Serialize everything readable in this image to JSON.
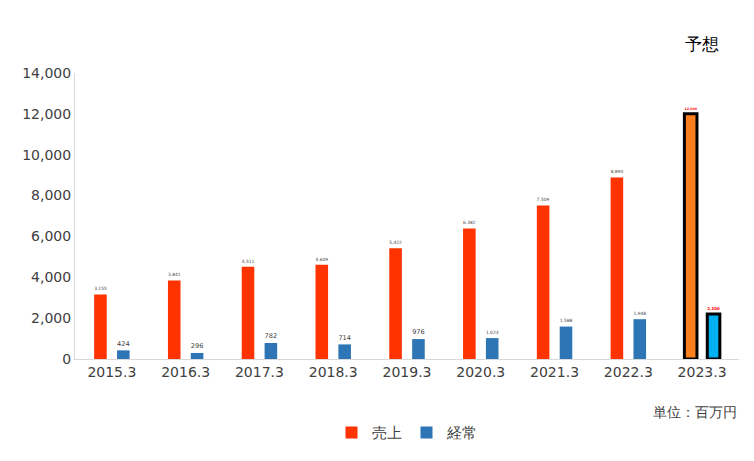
{
  "chart_data": {
    "type": "bar",
    "categories": [
      "2015.3",
      "2016.3",
      "2017.3",
      "2018.3",
      "2019.3",
      "2020.3",
      "2021.3",
      "2022.3",
      "2023.3"
    ],
    "series": [
      {
        "name": "売上",
        "colors": [
          "#ff3300",
          "#ff3300",
          "#ff3300",
          "#ff3300",
          "#ff3300",
          "#ff3300",
          "#ff3300",
          "#ff3300",
          "#ff7f1e"
        ],
        "values": [
          3155,
          3841,
          4511,
          4609,
          5422,
          6382,
          7509,
          8890,
          12000
        ],
        "value_labels": [
          "3,155",
          "3,841",
          "4,511",
          "4,609",
          "5,422",
          "6,382",
          "7,509",
          "8,890",
          "12,000"
        ]
      },
      {
        "name": "経常",
        "colors": [
          "#2e75b6",
          "#2e75b6",
          "#2e75b6",
          "#2e75b6",
          "#2e75b6",
          "#2e75b6",
          "#2e75b6",
          "#2e75b6",
          "#00b0f0"
        ],
        "values": [
          424,
          296,
          782,
          714,
          976,
          1023,
          1588,
          1948,
          2200
        ],
        "value_labels": [
          "424",
          "296",
          "782",
          "714",
          "976",
          "1,023",
          "1,588",
          "1,948",
          "2,200"
        ]
      }
    ],
    "ylim": [
      0,
      14000
    ],
    "yticks": [
      0,
      {
        "value": 2000,
        "label": "2,000"
      },
      {
        "value": 4000,
        "label": "4,000"
      },
      {
        "value": 6000,
        "label": "6,000"
      },
      {
        "value": 8000,
        "label": "8,000"
      },
      {
        "value": 10000,
        "label": "10,000"
      },
      {
        "value": 12000,
        "label": "12,000"
      },
      {
        "value": 14000,
        "label": "14,000"
      }
    ],
    "grid": false,
    "legend": "bottom",
    "data_labels": true,
    "annotations": [
      {
        "text": "予想",
        "category": "2023.3"
      },
      {
        "text": "単位：百万円"
      }
    ]
  }
}
